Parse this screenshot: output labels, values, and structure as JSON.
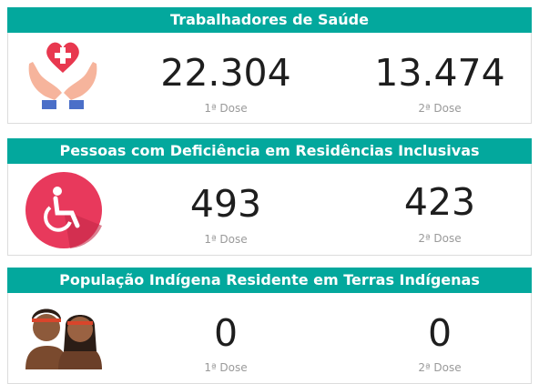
{
  "cards": [
    {
      "title": "Trabalhadores de Saúde",
      "doses": [
        {
          "value": "22.304",
          "label": "1ª Dose"
        },
        {
          "value": "13.474",
          "label": "2ª Dose"
        }
      ]
    },
    {
      "title": "Pessoas com Deficiência em Residências Inclusivas",
      "doses": [
        {
          "value": "493",
          "label": "1ª Dose"
        },
        {
          "value": "423",
          "label": "2ª Dose"
        }
      ]
    },
    {
      "title": "População Indígena Residente em Terras Indígenas",
      "doses": [
        {
          "value": "0",
          "label": "1ª Dose"
        },
        {
          "value": "0",
          "label": "2ª Dose"
        }
      ]
    }
  ]
}
